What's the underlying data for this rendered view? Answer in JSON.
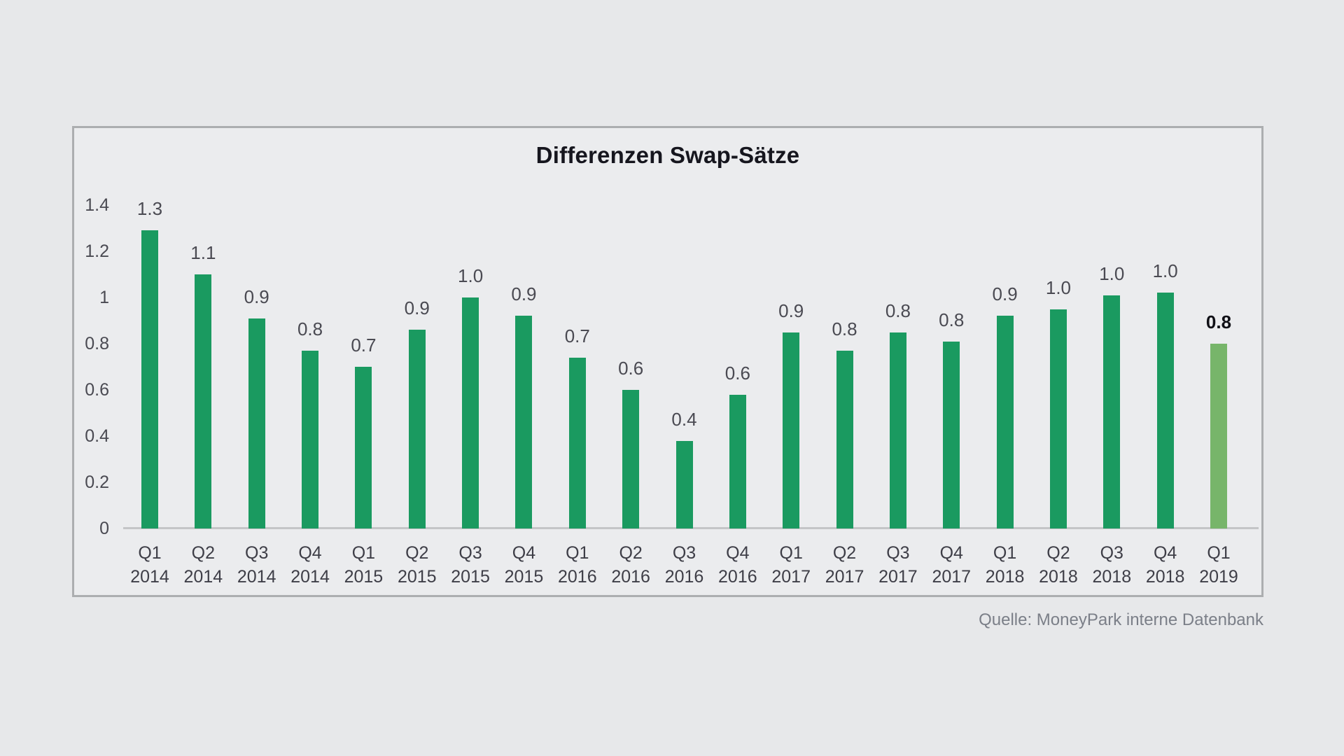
{
  "page": {
    "background_color": "#e7e8ea",
    "panel_background_color": "#ebecee",
    "panel_border_color": "#acaeb0"
  },
  "source_caption": "Quelle: MoneyPark interne Datenbank",
  "chart_data": {
    "type": "bar",
    "title": "Differenzen Swap-Sätze",
    "xlabel": "",
    "ylabel": "",
    "ylim": [
      0,
      1.4
    ],
    "grid": false,
    "legend": null,
    "y_ticks": [
      "1.4",
      "1.2",
      "1",
      "0.8",
      "0.6",
      "0.4",
      "0.2",
      "0"
    ],
    "colors": {
      "bar": "#1a9a60",
      "highlight_bar": "#77b56a",
      "axis_line": "#c4c5c7"
    },
    "bars": [
      {
        "quarter": "Q1",
        "year": "2014",
        "label": "1.3",
        "value": 1.29,
        "highlight": false
      },
      {
        "quarter": "Q2",
        "year": "2014",
        "label": "1.1",
        "value": 1.1,
        "highlight": false
      },
      {
        "quarter": "Q3",
        "year": "2014",
        "label": "0.9",
        "value": 0.91,
        "highlight": false
      },
      {
        "quarter": "Q4",
        "year": "2014",
        "label": "0.8",
        "value": 0.77,
        "highlight": false
      },
      {
        "quarter": "Q1",
        "year": "2015",
        "label": "0.7",
        "value": 0.7,
        "highlight": false
      },
      {
        "quarter": "Q2",
        "year": "2015",
        "label": "0.9",
        "value": 0.86,
        "highlight": false
      },
      {
        "quarter": "Q3",
        "year": "2015",
        "label": "1.0",
        "value": 1.0,
        "highlight": false
      },
      {
        "quarter": "Q4",
        "year": "2015",
        "label": "0.9",
        "value": 0.92,
        "highlight": false
      },
      {
        "quarter": "Q1",
        "year": "2016",
        "label": "0.7",
        "value": 0.74,
        "highlight": false
      },
      {
        "quarter": "Q2",
        "year": "2016",
        "label": "0.6",
        "value": 0.6,
        "highlight": false
      },
      {
        "quarter": "Q3",
        "year": "2016",
        "label": "0.4",
        "value": 0.38,
        "highlight": false
      },
      {
        "quarter": "Q4",
        "year": "2016",
        "label": "0.6",
        "value": 0.58,
        "highlight": false
      },
      {
        "quarter": "Q1",
        "year": "2017",
        "label": "0.9",
        "value": 0.85,
        "highlight": false
      },
      {
        "quarter": "Q2",
        "year": "2017",
        "label": "0.8",
        "value": 0.77,
        "highlight": false
      },
      {
        "quarter": "Q3",
        "year": "2017",
        "label": "0.8",
        "value": 0.85,
        "highlight": false
      },
      {
        "quarter": "Q4",
        "year": "2017",
        "label": "0.8",
        "value": 0.81,
        "highlight": false
      },
      {
        "quarter": "Q1",
        "year": "2018",
        "label": "0.9",
        "value": 0.92,
        "highlight": false
      },
      {
        "quarter": "Q2",
        "year": "2018",
        "label": "1.0",
        "value": 0.95,
        "highlight": false
      },
      {
        "quarter": "Q3",
        "year": "2018",
        "label": "1.0",
        "value": 1.01,
        "highlight": false
      },
      {
        "quarter": "Q4",
        "year": "2018",
        "label": "1.0",
        "value": 1.02,
        "highlight": false
      },
      {
        "quarter": "Q1",
        "year": "2019",
        "label": "0.8",
        "value": 0.8,
        "highlight": true
      }
    ]
  }
}
